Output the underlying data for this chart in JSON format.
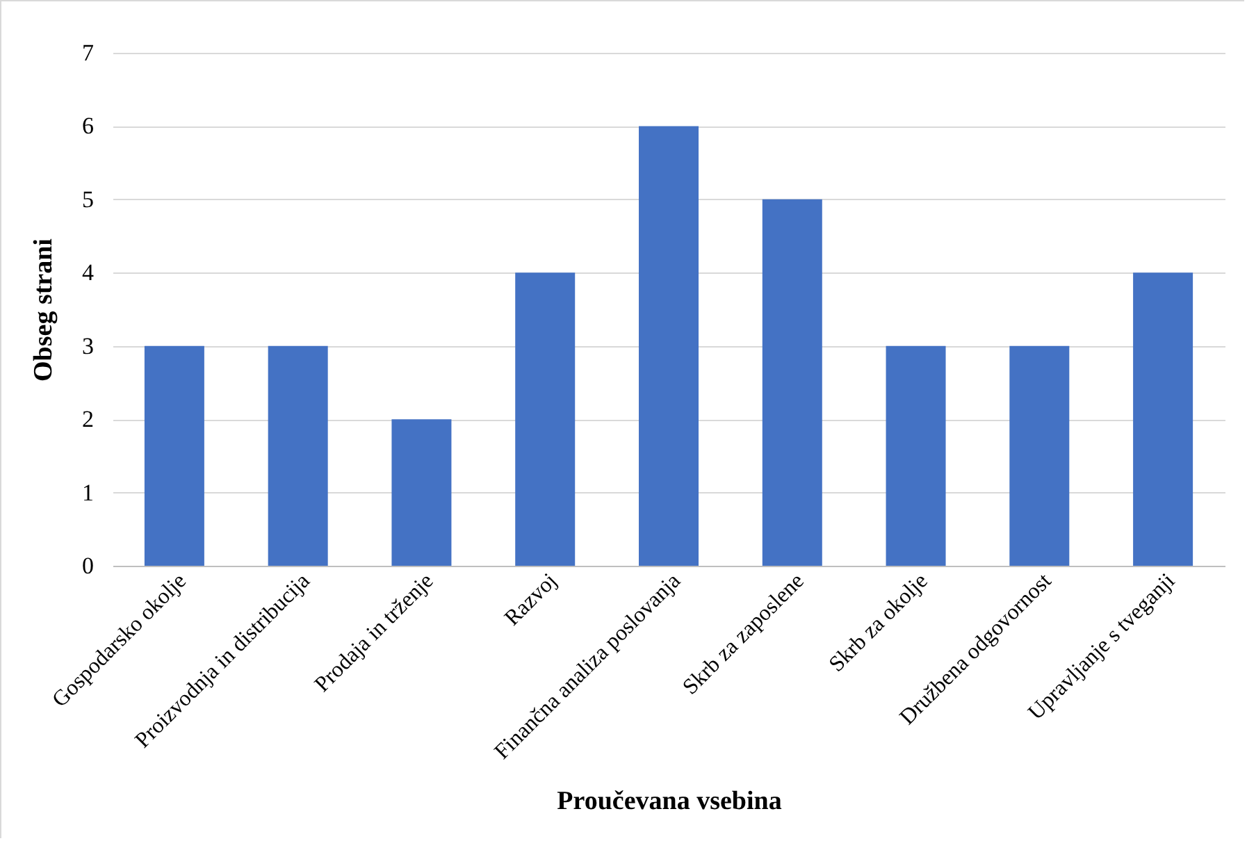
{
  "chart_data": {
    "type": "bar",
    "xlabel": "Proučevana vsebina",
    "ylabel": "Obseg strani",
    "categories": [
      "Gospodarsko okolje",
      "Proizvodnja in distribucija",
      "Prodaja in trženje",
      "Razvoj",
      "Finančna analiza poslovanja",
      "Skrb za zaposlene",
      "Skrb za okolje",
      "Družbena odgovornost",
      "Upravljanje s tveganji"
    ],
    "values": [
      3,
      3,
      2,
      4,
      6,
      5,
      3,
      3,
      4
    ],
    "color": "#4472c4",
    "ylim": [
      0,
      7
    ],
    "yticks": [
      0,
      1,
      2,
      3,
      4,
      5,
      6,
      7
    ],
    "grid": "y"
  }
}
